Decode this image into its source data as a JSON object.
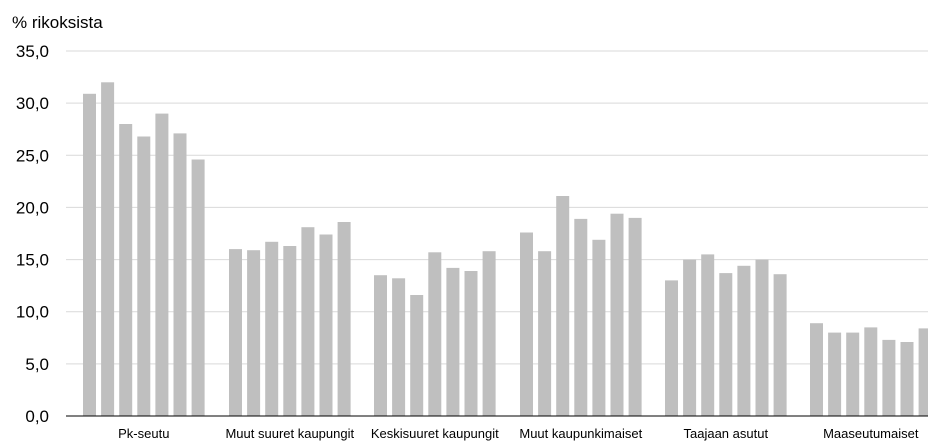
{
  "chart_data": {
    "type": "bar",
    "ylabel": "% rikoksista",
    "ylim": [
      0,
      35
    ],
    "yticks": [
      "0,0",
      "5,0",
      "10,0",
      "15,0",
      "20,0",
      "25,0",
      "30,0",
      "35,0"
    ],
    "grid": true,
    "bar_color": "#bfbfbf",
    "grid_color": "#d9d9d9",
    "groups": [
      {
        "label": "Pk-seutu",
        "values": [
          30.9,
          32.0,
          28.0,
          26.8,
          29.0,
          27.1,
          24.6
        ]
      },
      {
        "label": "Muut suuret kaupungit",
        "values": [
          16.0,
          15.9,
          16.7,
          16.3,
          18.1,
          17.4,
          18.6
        ]
      },
      {
        "label": "Keskisuuret kaupungit",
        "values": [
          13.5,
          13.2,
          11.6,
          15.7,
          14.2,
          13.9,
          15.8
        ]
      },
      {
        "label": "Muut kaupunkimaiset",
        "values": [
          17.6,
          15.8,
          21.1,
          18.9,
          16.9,
          19.4,
          19.0
        ]
      },
      {
        "label": "Taajaan asutut",
        "values": [
          13.0,
          15.0,
          15.5,
          13.7,
          14.4,
          15.0,
          13.6
        ]
      },
      {
        "label": "Maaseutumaiset",
        "values": [
          8.9,
          8.0,
          8.0,
          8.5,
          7.3,
          7.1,
          8.4
        ]
      }
    ]
  }
}
